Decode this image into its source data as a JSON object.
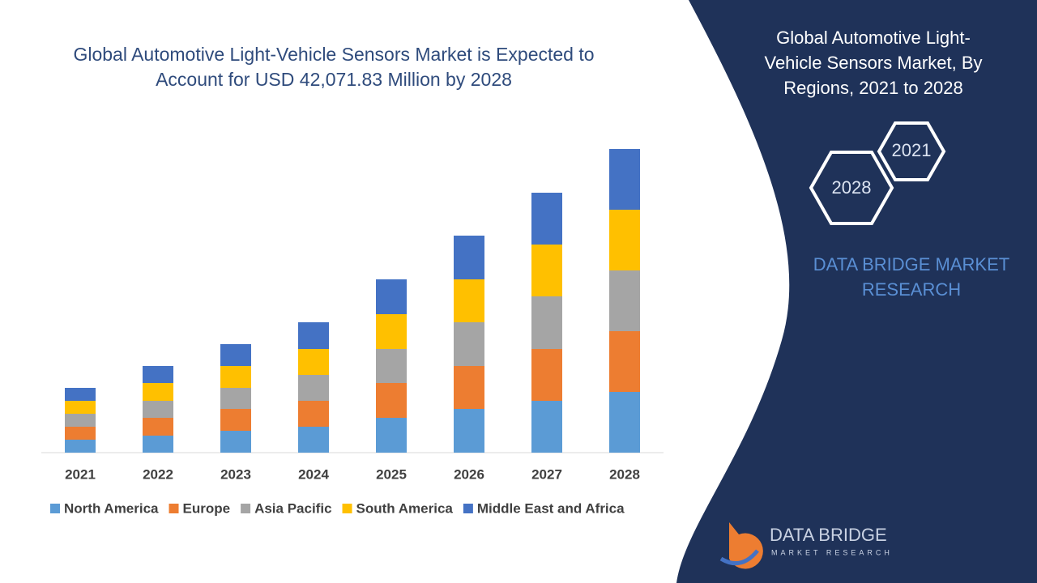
{
  "chart_data": {
    "type": "bar",
    "stacked": true,
    "title": "Global Automotive Light-Vehicle Sensors Market is Expected to Account for USD 42,071.83 Million by 2028",
    "categories": [
      "2021",
      "2022",
      "2023",
      "2024",
      "2025",
      "2026",
      "2027",
      "2028"
    ],
    "series": [
      {
        "name": "North America",
        "color": "#5b9bd5",
        "values": [
          16,
          21,
          27,
          32,
          43,
          54,
          64,
          75
        ]
      },
      {
        "name": "Europe",
        "color": "#ed7d31",
        "values": [
          16,
          22,
          27,
          32,
          43,
          53,
          64,
          75
        ]
      },
      {
        "name": "Asia Pacific",
        "color": "#a5a5a5",
        "values": [
          16,
          21,
          26,
          32,
          42,
          54,
          65,
          75
        ]
      },
      {
        "name": "South America",
        "color": "#ffc000",
        "values": [
          16,
          22,
          27,
          32,
          43,
          53,
          64,
          75
        ]
      },
      {
        "name": "Middle East and Africa",
        "color": "#4472c4",
        "values": [
          16,
          21,
          27,
          33,
          43,
          54,
          64,
          75
        ]
      }
    ],
    "ylim": [
      0,
      380
    ],
    "legend": "bottom"
  },
  "panel": {
    "title": "Global Automotive Light-Vehicle Sensors Market, By Regions, 2021 to 2028",
    "hexagons": [
      "2021",
      "2028"
    ],
    "brand": "DATA BRIDGE MARKET RESEARCH"
  },
  "logo": {
    "name": "DATA BRIDGE",
    "tagline": "MARKET RESEARCH"
  }
}
